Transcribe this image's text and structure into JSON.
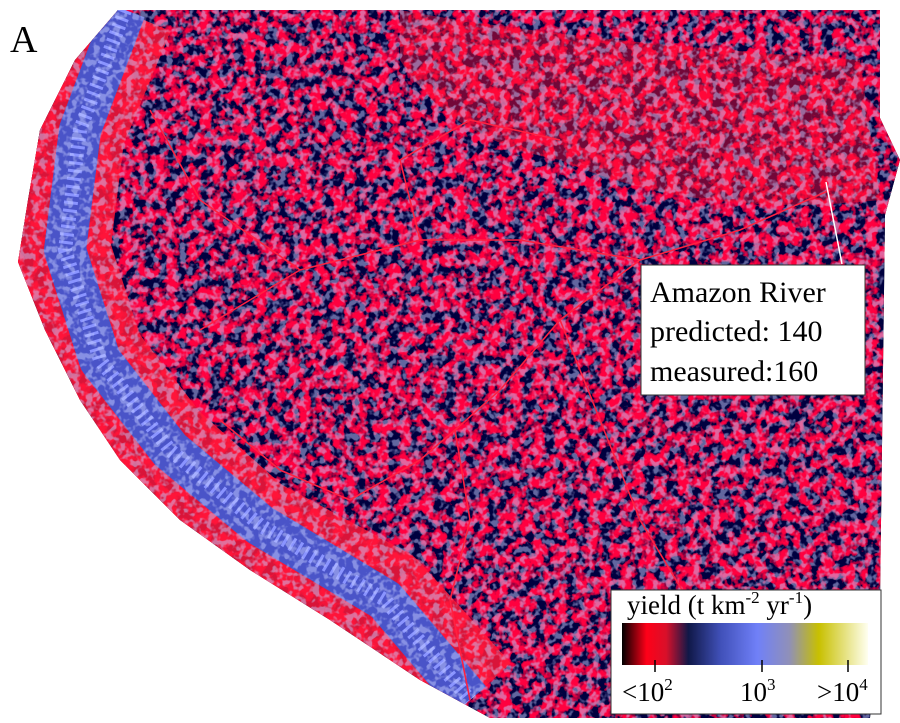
{
  "panel_label": "A",
  "annotation": {
    "name": "Amazon River",
    "predicted": "predicted: 140",
    "measured": "measured:160"
  },
  "legend": {
    "title": [
      "yield (t km",
      "-2",
      " yr",
      "-1",
      ")"
    ],
    "ticks": [
      {
        "text": "<10",
        "sup": "2"
      },
      {
        "text": "10",
        "sup": "3"
      },
      {
        "text": ">10",
        "sup": "4"
      }
    ]
  }
}
